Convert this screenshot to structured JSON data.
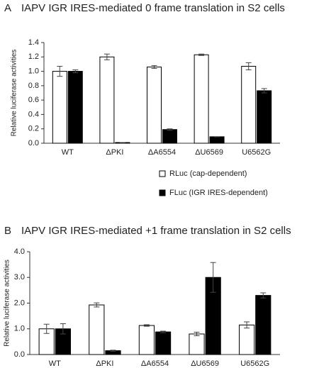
{
  "chart_data": [
    {
      "type": "bar",
      "panel_label": "A",
      "title": "IAPV IGR IRES-mediated 0 frame translation in S2 cells",
      "ylabel": "Relative luciferase activities",
      "categories": [
        "WT",
        "ΔPKI",
        "ΔA6554",
        "ΔU6569",
        "U6562G"
      ],
      "series": [
        {
          "name": "RLuc (cap-dependent)",
          "color": "#ffffff",
          "values": [
            1.0,
            1.2,
            1.06,
            1.23,
            1.07
          ],
          "errors": [
            0.07,
            0.04,
            0.02,
            0.01,
            0.05
          ]
        },
        {
          "name": "FLuc (IGR IRES-dependent)",
          "color": "#000000",
          "values": [
            1.0,
            0.01,
            0.19,
            0.09,
            0.73
          ],
          "errors": [
            0.02,
            0.0,
            0.01,
            0.0,
            0.03
          ]
        }
      ],
      "ylim": [
        0,
        1.4
      ],
      "yticks": [
        {
          "value": 0,
          "label": "0.0"
        },
        {
          "value": 0.2,
          "label": "0.2"
        },
        {
          "value": 0.4,
          "label": "0.4"
        },
        {
          "value": 0.6,
          "label": "0.6"
        },
        {
          "value": 0.8,
          "label": "0.8"
        },
        {
          "value": 1,
          "label": "1.0"
        },
        {
          "value": 1.2,
          "label": "1.2"
        },
        {
          "value": 1.4,
          "label": "1.4"
        }
      ]
    },
    {
      "type": "bar",
      "panel_label": "B",
      "title": "IAPV IGR IRES-mediated +1 frame translation in S2 cells",
      "ylabel": "Relative luciferase activities",
      "categories": [
        "WT",
        "ΔPKI",
        "ΔA6554",
        "ΔU6569",
        "U6562G"
      ],
      "series": [
        {
          "color": "#ffffff",
          "values": [
            1.0,
            1.93,
            1.13,
            0.8,
            1.15
          ],
          "errors": [
            0.18,
            0.08,
            0.03,
            0.07,
            0.12
          ]
        },
        {
          "color": "#000000",
          "values": [
            1.0,
            0.15,
            0.88,
            3.0,
            2.3
          ],
          "errors": [
            0.2,
            0.02,
            0.03,
            0.58,
            0.1
          ]
        }
      ],
      "ylim": [
        0,
        4
      ],
      "yticks": [
        {
          "value": 0,
          "label": "0.0"
        },
        {
          "value": 1,
          "label": "1.0"
        },
        {
          "value": 2,
          "label": "2.0"
        },
        {
          "value": 3,
          "label": "3.0"
        },
        {
          "value": 4,
          "label": "4.0"
        }
      ]
    }
  ]
}
